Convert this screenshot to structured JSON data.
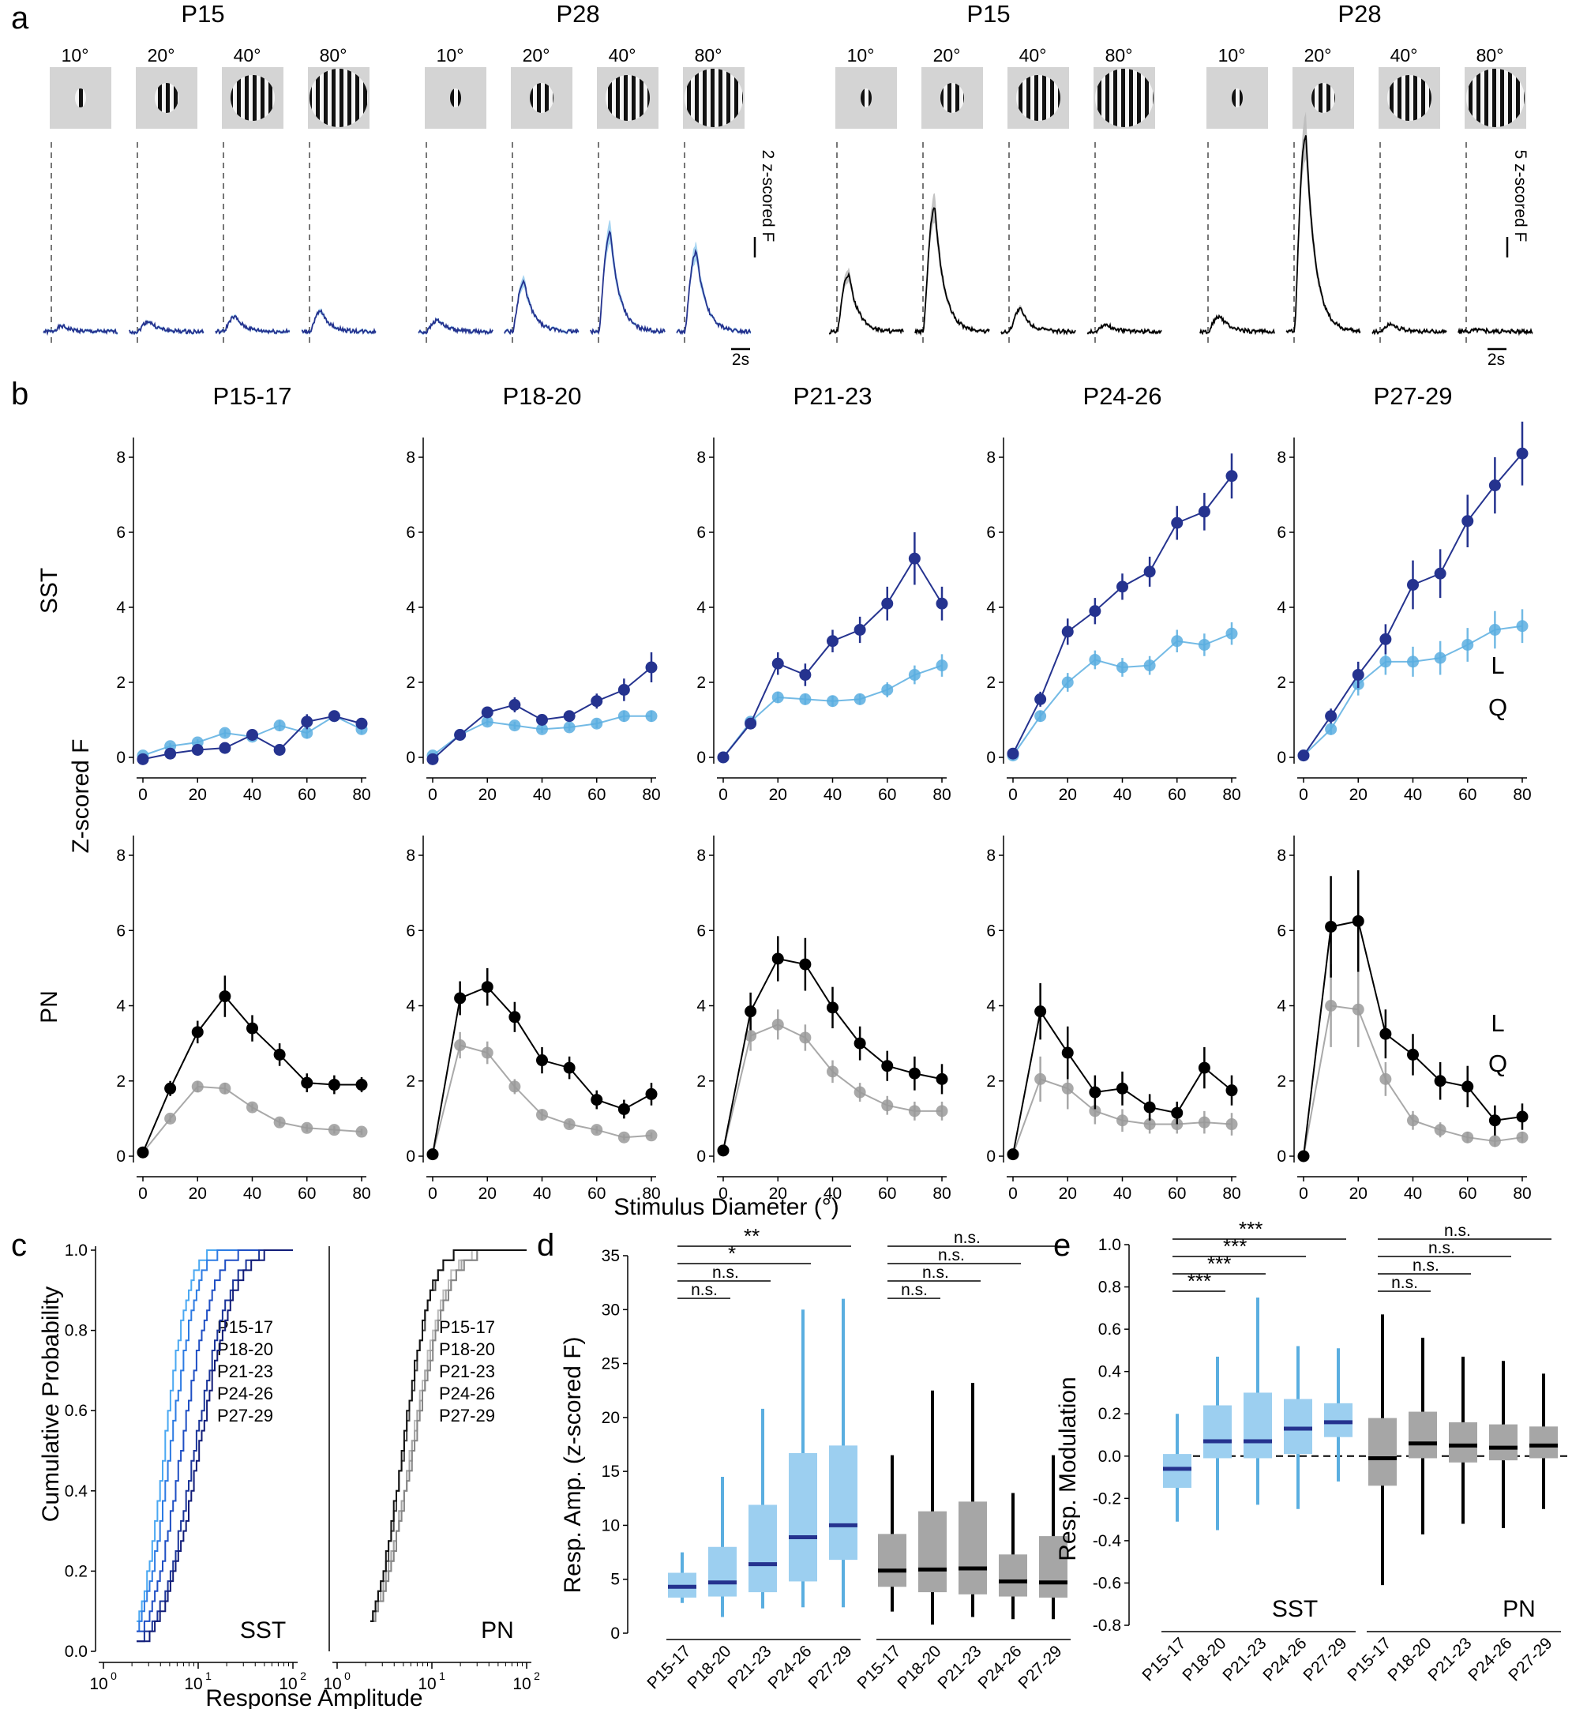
{
  "colors": {
    "sst_dark": "#25338f",
    "sst_light": "#5aaee0",
    "sst_light_fill": "#9ccff0",
    "pn_dark": "#000000",
    "pn_light": "#9a9a9a",
    "gray_fill": "#a6a6a6",
    "stim_bg": "#d4d4d4",
    "c_sst_lines": [
      "#4aa8f2",
      "#2d7be3",
      "#1f4fc4",
      "#1a3499",
      "#111c78"
    ],
    "c_pn_lines": [
      "#b9b9b9",
      "#a2a2a2",
      "#858585",
      "#444444",
      "#111111"
    ]
  },
  "panel_a": {
    "letter": "a",
    "groups": [
      {
        "title": "P15",
        "traces": [
          0.28,
          0.55,
          0.78,
          1.05
        ],
        "color": "sst"
      },
      {
        "title": "P28",
        "traces": [
          0.62,
          2.6,
          5.2,
          4.2
        ],
        "color": "sst"
      },
      {
        "title": "P15",
        "traces": [
          3.3,
          7.1,
          1.3,
          0.4
        ],
        "color": "pn"
      },
      {
        "title": "P28",
        "traces": [
          0.9,
          11.3,
          0.45,
          0.12
        ],
        "color": "pn"
      }
    ],
    "stim_labels": [
      "10°",
      "20°",
      "40°",
      "80°"
    ],
    "scale_sst": "2 z-scored F",
    "scale_pn": "5 z-scored F",
    "time_scale": "2s"
  },
  "chart_data": [
    {
      "type": "line",
      "panel": "b",
      "row": "SST",
      "x": [
        0,
        10,
        20,
        30,
        40,
        50,
        60,
        70,
        80
      ],
      "xlim": [
        0,
        80
      ],
      "ylim": [
        0,
        8
      ],
      "xticks": [
        0,
        20,
        40,
        60,
        80
      ],
      "yticks": [
        0,
        2,
        4,
        6,
        8
      ],
      "titles": [
        "P15-17",
        "P18-20",
        "P21-23",
        "P24-26",
        "P27-29"
      ],
      "row_label": "SST",
      "legend": [
        "L",
        "Q"
      ],
      "subplots": [
        {
          "L": [
            -0.05,
            0.1,
            0.2,
            0.25,
            0.6,
            0.2,
            0.95,
            1.1,
            0.9
          ],
          "Q": [
            0.05,
            0.3,
            0.4,
            0.65,
            0.55,
            0.85,
            0.65,
            1.1,
            0.75
          ],
          "Lerr": [
            0.05,
            0.08,
            0.1,
            0.1,
            0.15,
            0.15,
            0.2,
            0.15,
            0.15
          ],
          "Qerr": [
            0.05,
            0.08,
            0.08,
            0.1,
            0.1,
            0.15,
            0.15,
            0.15,
            0.12
          ]
        },
        {
          "L": [
            -0.05,
            0.6,
            1.2,
            1.4,
            1.0,
            1.1,
            1.5,
            1.8,
            2.4
          ],
          "Q": [
            0.05,
            0.6,
            0.95,
            0.85,
            0.75,
            0.8,
            0.9,
            1.1,
            1.1
          ],
          "Lerr": [
            0.05,
            0.1,
            0.15,
            0.2,
            0.15,
            0.15,
            0.2,
            0.3,
            0.4
          ],
          "Qerr": [
            0.05,
            0.08,
            0.1,
            0.1,
            0.1,
            0.1,
            0.12,
            0.15,
            0.15
          ]
        },
        {
          "L": [
            0.0,
            0.9,
            2.5,
            2.2,
            3.1,
            3.4,
            4.1,
            5.3,
            4.1
          ],
          "Q": [
            0.0,
            0.95,
            1.6,
            1.55,
            1.5,
            1.55,
            1.8,
            2.2,
            2.45
          ],
          "Lerr": [
            0.05,
            0.15,
            0.3,
            0.3,
            0.3,
            0.35,
            0.45,
            0.7,
            0.45
          ],
          "Qerr": [
            0.05,
            0.1,
            0.15,
            0.15,
            0.15,
            0.15,
            0.2,
            0.25,
            0.3
          ]
        },
        {
          "L": [
            0.1,
            1.55,
            3.35,
            3.9,
            4.55,
            4.95,
            6.25,
            6.55,
            7.5
          ],
          "Q": [
            0.05,
            1.1,
            2.0,
            2.6,
            2.4,
            2.45,
            3.1,
            3.0,
            3.3
          ],
          "Lerr": [
            0.05,
            0.2,
            0.35,
            0.35,
            0.35,
            0.4,
            0.45,
            0.5,
            0.6
          ],
          "Qerr": [
            0.05,
            0.15,
            0.25,
            0.25,
            0.25,
            0.25,
            0.3,
            0.3,
            0.3
          ]
        },
        {
          "L": [
            0.05,
            1.1,
            2.2,
            3.15,
            4.6,
            4.9,
            6.3,
            7.25,
            8.1
          ],
          "Q": [
            0.05,
            0.75,
            1.95,
            2.55,
            2.55,
            2.65,
            3.0,
            3.4,
            3.5
          ],
          "Lerr": [
            0.05,
            0.2,
            0.35,
            0.4,
            0.65,
            0.65,
            0.7,
            0.75,
            0.85
          ],
          "Qerr": [
            0.05,
            0.15,
            0.3,
            0.35,
            0.4,
            0.45,
            0.45,
            0.5,
            0.45
          ]
        }
      ]
    },
    {
      "type": "line",
      "panel": "b",
      "row": "PN",
      "x": [
        0,
        10,
        20,
        30,
        40,
        50,
        60,
        70,
        80
      ],
      "xlim": [
        0,
        80
      ],
      "ylim": [
        0,
        8
      ],
      "xticks": [
        0,
        20,
        40,
        60,
        80
      ],
      "yticks": [
        0,
        2,
        4,
        6,
        8
      ],
      "row_label": "PN",
      "ylabel": "Z-scored F",
      "xlabel": "Stimulus Diameter (°)",
      "legend": [
        "L",
        "Q"
      ],
      "subplots": [
        {
          "L": [
            0.1,
            1.8,
            3.3,
            4.25,
            3.4,
            2.7,
            1.95,
            1.9,
            1.9
          ],
          "Q": [
            0.1,
            1.0,
            1.85,
            1.8,
            1.3,
            0.9,
            0.75,
            0.7,
            0.65
          ],
          "Lerr": [
            0.05,
            0.2,
            0.3,
            0.55,
            0.35,
            0.3,
            0.25,
            0.25,
            0.2
          ],
          "Qerr": [
            0.05,
            0.1,
            0.15,
            0.15,
            0.1,
            0.1,
            0.1,
            0.1,
            0.08
          ]
        },
        {
          "L": [
            0.05,
            4.2,
            4.5,
            3.7,
            2.55,
            2.35,
            1.5,
            1.25,
            1.65
          ],
          "Q": [
            0.05,
            2.95,
            2.75,
            1.85,
            1.1,
            0.85,
            0.7,
            0.5,
            0.55
          ],
          "Lerr": [
            0.05,
            0.45,
            0.5,
            0.4,
            0.35,
            0.3,
            0.25,
            0.25,
            0.3
          ],
          "Qerr": [
            0.05,
            0.35,
            0.3,
            0.2,
            0.15,
            0.1,
            0.1,
            0.08,
            0.08
          ]
        },
        {
          "L": [
            0.15,
            3.85,
            5.25,
            5.1,
            3.95,
            3.0,
            2.4,
            2.2,
            2.05
          ],
          "Q": [
            0.15,
            3.2,
            3.5,
            3.15,
            2.25,
            1.7,
            1.35,
            1.2,
            1.2
          ],
          "Lerr": [
            0.05,
            0.5,
            0.6,
            0.7,
            0.55,
            0.45,
            0.4,
            0.45,
            0.4
          ],
          "Qerr": [
            0.05,
            0.4,
            0.4,
            0.35,
            0.3,
            0.25,
            0.25,
            0.25,
            0.25
          ]
        },
        {
          "L": [
            0.05,
            3.85,
            2.75,
            1.7,
            1.8,
            1.3,
            1.15,
            2.35,
            1.75
          ],
          "Q": [
            0.05,
            2.05,
            1.8,
            1.2,
            0.95,
            0.85,
            0.85,
            0.9,
            0.85
          ],
          "Lerr": [
            0.05,
            0.75,
            0.7,
            0.45,
            0.45,
            0.35,
            0.3,
            0.55,
            0.4
          ],
          "Qerr": [
            0.05,
            0.6,
            0.55,
            0.35,
            0.3,
            0.25,
            0.25,
            0.3,
            0.3
          ]
        },
        {
          "L": [
            0.0,
            6.1,
            6.25,
            3.25,
            2.7,
            2.0,
            1.85,
            0.95,
            1.05
          ],
          "Q": [
            0.0,
            4.0,
            3.9,
            2.05,
            0.95,
            0.7,
            0.5,
            0.4,
            0.5
          ],
          "Lerr": [
            0.05,
            1.35,
            1.35,
            0.65,
            0.55,
            0.5,
            0.55,
            0.4,
            0.35
          ],
          "Qerr": [
            0.05,
            1.1,
            1.0,
            0.45,
            0.25,
            0.2,
            0.15,
            0.15,
            0.15
          ]
        }
      ]
    },
    {
      "type": "line",
      "panel": "c",
      "letter": "c",
      "ylabel": "Cumulative Probability",
      "xlabel": "Response Amplitude",
      "xscale": "log",
      "xlim": [
        1,
        100
      ],
      "ylim": [
        0,
        1
      ],
      "yticks": [
        "0.0",
        "0.2",
        "0.4",
        "0.6",
        "0.8",
        "1.0"
      ],
      "xtick_labels": [
        "10",
        "0",
        "10",
        "1",
        "10",
        "2"
      ],
      "groups": [
        {
          "name": "SST",
          "series": [
            {
              "name": "P15-17",
              "median": 4.3,
              "spread": 0.2
            },
            {
              "name": "P18-20",
              "median": 5.0,
              "spread": 0.22
            },
            {
              "name": "P21-23",
              "median": 6.5,
              "spread": 0.26
            },
            {
              "name": "P24-26",
              "median": 9.0,
              "spread": 0.3
            },
            {
              "name": "P27-29",
              "median": 10.0,
              "spread": 0.3
            }
          ]
        },
        {
          "name": "PN",
          "series": [
            {
              "name": "P15-17",
              "median": 5.9,
              "spread": 0.28
            },
            {
              "name": "P18-20",
              "median": 6.0,
              "spread": 0.3
            },
            {
              "name": "P21-23",
              "median": 6.2,
              "spread": 0.3
            },
            {
              "name": "P24-26",
              "median": 4.9,
              "spread": 0.24
            },
            {
              "name": "P27-29",
              "median": 4.8,
              "spread": 0.24
            }
          ]
        }
      ]
    },
    {
      "type": "bar",
      "panel": "d",
      "letter": "d",
      "ylabel": "Resp. Amp. (z-scored F)",
      "ylim": [
        0,
        35
      ],
      "yticks": [
        0,
        5,
        10,
        15,
        20,
        25,
        30,
        35
      ],
      "categories": [
        "P15-17",
        "P18-20",
        "P21-23",
        "P24-26",
        "P27-29"
      ],
      "groups": [
        {
          "name": "SST",
          "boxes": [
            {
              "min": 2.8,
              "q1": 3.3,
              "median": 4.3,
              "q3": 5.6,
              "max": 7.5
            },
            {
              "min": 1.5,
              "q1": 3.4,
              "median": 4.7,
              "q3": 8.0,
              "max": 14.5
            },
            {
              "min": 2.3,
              "q1": 3.8,
              "median": 6.4,
              "q3": 11.9,
              "max": 20.8
            },
            {
              "min": 2.4,
              "q1": 4.8,
              "median": 8.9,
              "q3": 16.7,
              "max": 30.0
            },
            {
              "min": 2.4,
              "q1": 6.8,
              "median": 10.0,
              "q3": 17.4,
              "max": 31.0
            }
          ],
          "significance": [
            "n.s.",
            "n.s.",
            "*",
            "**"
          ]
        },
        {
          "name": "PN",
          "boxes": [
            {
              "min": 2.0,
              "q1": 4.3,
              "median": 5.8,
              "q3": 9.2,
              "max": 16.5
            },
            {
              "min": 0.8,
              "q1": 3.8,
              "median": 5.9,
              "q3": 11.3,
              "max": 22.5
            },
            {
              "min": 1.5,
              "q1": 3.6,
              "median": 6.0,
              "q3": 12.2,
              "max": 23.2
            },
            {
              "min": 1.3,
              "q1": 3.4,
              "median": 4.8,
              "q3": 7.3,
              "max": 13.0
            },
            {
              "min": 1.3,
              "q1": 3.3,
              "median": 4.7,
              "q3": 9.0,
              "max": 16.5
            }
          ],
          "significance": [
            "n.s.",
            "n.s.",
            "n.s.",
            "n.s."
          ]
        }
      ]
    },
    {
      "type": "bar",
      "panel": "e",
      "letter": "e",
      "ylabel": "Resp. Modulation",
      "ylim": [
        -0.8,
        1.0
      ],
      "yticks": [
        "-0.8",
        "-0.6",
        "-0.4",
        "-0.2",
        "0.0",
        "0.2",
        "0.4",
        "0.6",
        "0.8",
        "1.0"
      ],
      "categories": [
        "P15-17",
        "P18-20",
        "P21-23",
        "P24-26",
        "P27-29"
      ],
      "groups": [
        {
          "name": "SST",
          "boxes": [
            {
              "min": -0.31,
              "q1": -0.15,
              "median": -0.06,
              "q3": 0.01,
              "max": 0.2
            },
            {
              "min": -0.35,
              "q1": -0.01,
              "median": 0.07,
              "q3": 0.24,
              "max": 0.47
            },
            {
              "min": -0.23,
              "q1": -0.01,
              "median": 0.07,
              "q3": 0.3,
              "max": 0.75
            },
            {
              "min": -0.25,
              "q1": 0.01,
              "median": 0.13,
              "q3": 0.27,
              "max": 0.52
            },
            {
              "min": -0.12,
              "q1": 0.09,
              "median": 0.16,
              "q3": 0.25,
              "max": 0.51
            }
          ],
          "significance": [
            "***",
            "***",
            "***",
            "***"
          ]
        },
        {
          "name": "PN",
          "boxes": [
            {
              "min": -0.61,
              "q1": -0.14,
              "median": -0.01,
              "q3": 0.18,
              "max": 0.67
            },
            {
              "min": -0.37,
              "q1": -0.01,
              "median": 0.06,
              "q3": 0.21,
              "max": 0.56
            },
            {
              "min": -0.32,
              "q1": -0.03,
              "median": 0.05,
              "q3": 0.16,
              "max": 0.47
            },
            {
              "min": -0.34,
              "q1": -0.02,
              "median": 0.04,
              "q3": 0.15,
              "max": 0.45
            },
            {
              "min": -0.25,
              "q1": -0.01,
              "median": 0.05,
              "q3": 0.14,
              "max": 0.39
            }
          ],
          "significance": [
            "n.s.",
            "n.s.",
            "n.s.",
            "n.s."
          ]
        }
      ]
    }
  ]
}
